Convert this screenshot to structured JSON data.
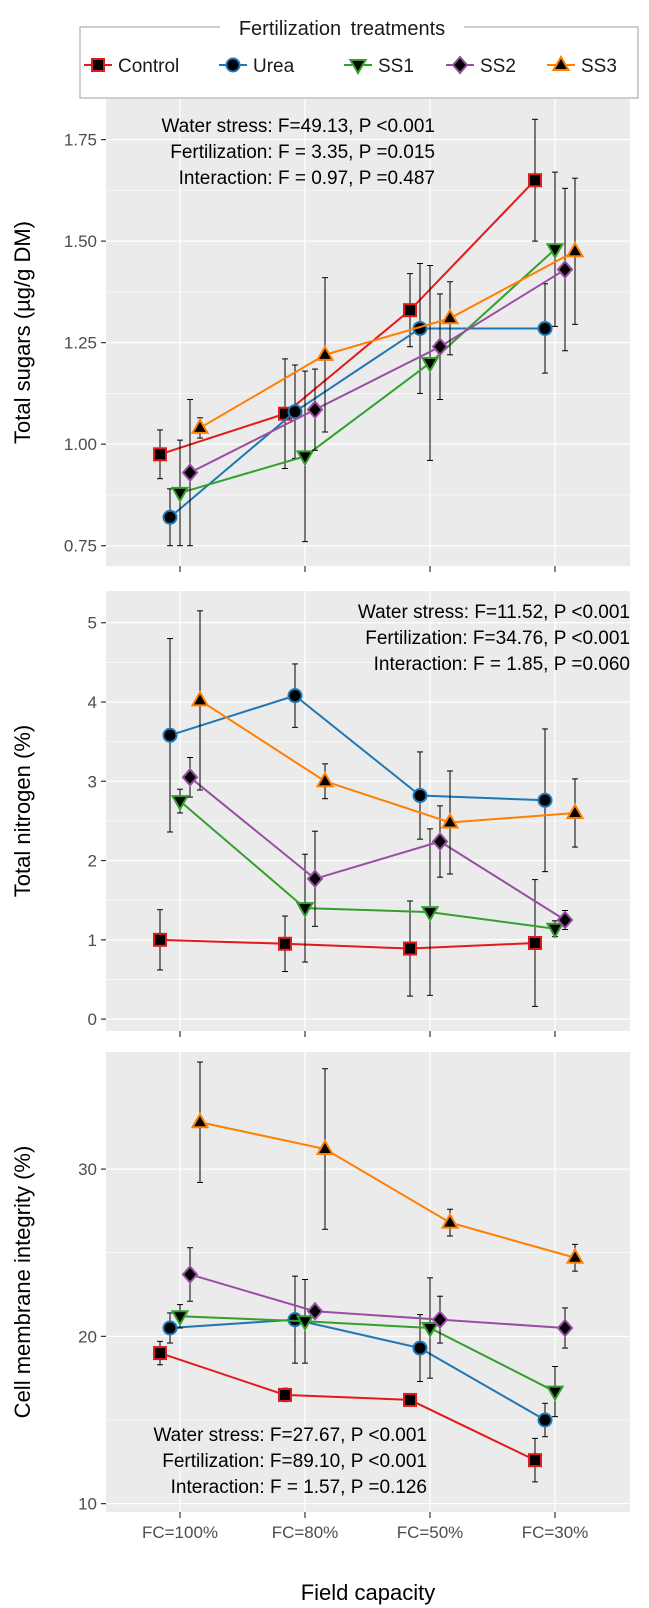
{
  "legend": {
    "title": "Fertilization treatments",
    "items": [
      {
        "label": "Control",
        "color": "#e31a1c",
        "marker": "square"
      },
      {
        "label": "Urea",
        "color": "#1f78b4",
        "marker": "circle"
      },
      {
        "label": "SS1",
        "color": "#33a02c",
        "marker": "triangle-down"
      },
      {
        "label": "SS2",
        "color": "#984ea3",
        "marker": "diamond"
      },
      {
        "label": "SS3",
        "color": "#ff7f00",
        "marker": "triangle-up"
      }
    ]
  },
  "panel_background": "#ebebeb",
  "gridline_color": "#ffffff",
  "chart_data": [
    {
      "type": "line",
      "ylabel": "Total sugars (µg/g DM)",
      "xlabel": "",
      "categories": [
        "FC=100%",
        "FC=80%",
        "FC=50%",
        "FC=30%"
      ],
      "ylim": [
        0.7,
        1.85
      ],
      "yticks": [
        0.75,
        1.0,
        1.25,
        1.5,
        1.75
      ],
      "ytick_labels": [
        "0.75",
        "1.00",
        "1.25",
        "1.50",
        "1.75"
      ],
      "stats": [
        {
          "label": "Water stress:",
          "F": "F=49.13,",
          "P": "P <0.001"
        },
        {
          "label": "Fertilization:",
          "F": "F = 3.35,",
          "P": "P =0.015"
        },
        {
          "label": "Interaction:",
          "F": "F = 0.97,",
          "P": "P =0.487"
        }
      ],
      "series": [
        {
          "name": "Control",
          "values": [
            0.975,
            1.075,
            1.33,
            1.65
          ],
          "err": [
            0.06,
            0.135,
            0.09,
            0.15
          ]
        },
        {
          "name": "Urea",
          "values": [
            0.82,
            1.08,
            1.285,
            1.285
          ],
          "err": [
            0.07,
            0.115,
            0.16,
            0.11
          ]
        },
        {
          "name": "SS1",
          "values": [
            0.88,
            0.97,
            1.2,
            1.48
          ],
          "err": [
            0.13,
            0.21,
            0.24,
            0.19
          ]
        },
        {
          "name": "SS2",
          "values": [
            0.93,
            1.085,
            1.24,
            1.43
          ],
          "err": [
            0.18,
            0.1,
            0.13,
            0.2
          ]
        },
        {
          "name": "SS3",
          "values": [
            1.04,
            1.22,
            1.31,
            1.475
          ],
          "err": [
            0.025,
            0.19,
            0.09,
            0.18
          ]
        }
      ]
    },
    {
      "type": "line",
      "ylabel": "Total nitrogen (%)",
      "xlabel": "",
      "categories": [
        "FC=100%",
        "FC=80%",
        "FC=50%",
        "FC=30%"
      ],
      "ylim": [
        -0.15,
        5.4
      ],
      "yticks": [
        0,
        1,
        2,
        3,
        4,
        5
      ],
      "ytick_labels": [
        "0",
        "1",
        "2",
        "3",
        "4",
        "5"
      ],
      "stats": [
        {
          "label": "Water stress:",
          "F": "F=11.52,",
          "P": "P <0.001"
        },
        {
          "label": "Fertilization:",
          "F": "F=34.76,",
          "P": "P <0.001"
        },
        {
          "label": "Interaction:",
          "F": "F = 1.85,",
          "P": "P =0.060"
        }
      ],
      "series": [
        {
          "name": "Control",
          "values": [
            1.0,
            0.95,
            0.89,
            0.96
          ],
          "err": [
            0.38,
            0.35,
            0.6,
            0.8
          ]
        },
        {
          "name": "Urea",
          "values": [
            3.58,
            4.08,
            2.82,
            2.76
          ],
          "err": [
            1.22,
            0.4,
            0.55,
            0.9
          ]
        },
        {
          "name": "SS1",
          "values": [
            2.75,
            1.4,
            1.35,
            1.14
          ],
          "err": [
            0.15,
            0.68,
            1.05,
            0.1
          ]
        },
        {
          "name": "SS2",
          "values": [
            3.05,
            1.77,
            2.24,
            1.25
          ],
          "err": [
            0.25,
            0.6,
            0.45,
            0.12
          ]
        },
        {
          "name": "SS3",
          "values": [
            4.02,
            3.0,
            2.48,
            2.6
          ],
          "err": [
            1.13,
            0.22,
            0.65,
            0.43
          ]
        }
      ]
    },
    {
      "type": "line",
      "ylabel": "Cell membrane integrity (%)",
      "xlabel": "Field capacity",
      "categories": [
        "FC=100%",
        "FC=80%",
        "FC=50%",
        "FC=30%"
      ],
      "ylim": [
        9.5,
        37.0
      ],
      "yticks": [
        10,
        20,
        30
      ],
      "ytick_labels": [
        "10",
        "20",
        "30"
      ],
      "stats": [
        {
          "label": "Water stress:",
          "F": "F=27.67,",
          "P": "P <0.001"
        },
        {
          "label": "Fertilization:",
          "F": "F=89.10,",
          "P": "P <0.001"
        },
        {
          "label": "Interaction:",
          "F": "F = 1.57,",
          "P": "P =0.126"
        }
      ],
      "series": [
        {
          "name": "Control",
          "values": [
            19.0,
            16.5,
            16.2,
            12.6
          ],
          "err": [
            0.7,
            0.4,
            0.3,
            1.3
          ]
        },
        {
          "name": "Urea",
          "values": [
            20.5,
            21.0,
            19.3,
            15.0
          ],
          "err": [
            0.9,
            2.6,
            2.0,
            1.0
          ]
        },
        {
          "name": "SS1",
          "values": [
            21.2,
            20.9,
            20.5,
            16.7
          ],
          "err": [
            0.7,
            2.5,
            3.0,
            1.5
          ]
        },
        {
          "name": "SS2",
          "values": [
            23.7,
            21.5,
            21.0,
            20.5
          ],
          "err": [
            1.6,
            0.3,
            1.4,
            1.2
          ]
        },
        {
          "name": "SS3",
          "values": [
            32.8,
            31.2,
            26.8,
            24.7
          ],
          "err": [
            3.6,
            4.8,
            0.8,
            0.8
          ]
        }
      ]
    }
  ]
}
